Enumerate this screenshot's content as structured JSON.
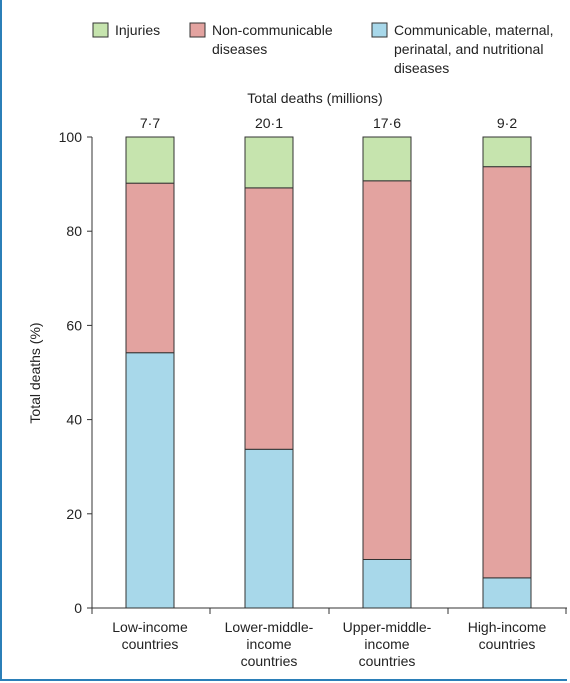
{
  "chart_data": {
    "type": "bar",
    "stacked": true,
    "categories": [
      [
        "Low-income",
        "countries"
      ],
      [
        "Lower-middle-",
        "income",
        "countries"
      ],
      [
        "Upper-middle-",
        "income",
        "countries"
      ],
      [
        "High-income",
        "countries"
      ]
    ],
    "series": [
      {
        "name": "Communicable, maternal, perinatal, and nutritional diseases",
        "legend_lines": [
          "Communicable, maternal,",
          "perinatal, and nutritional",
          "diseases"
        ],
        "color": "#a8d8ea",
        "values": [
          54.2,
          33.7,
          10.3,
          6.4
        ]
      },
      {
        "name": "Non-communicable diseases",
        "legend_lines": [
          "Non-communicable",
          "diseases"
        ],
        "color": "#e3a3a0",
        "values": [
          36.0,
          55.5,
          80.4,
          87.3
        ]
      },
      {
        "name": "Injuries",
        "legend_lines": [
          "Injuries"
        ],
        "color": "#c6e4ae",
        "values": [
          9.8,
          10.8,
          9.3,
          6.3
        ]
      }
    ],
    "stack_order": [
      "Communicable, maternal, perinatal, and nutritional diseases",
      "Non-communicable diseases",
      "Injuries"
    ],
    "totals_title": "Total deaths (millions)",
    "totals": [
      "7·7",
      "20·1",
      "17·6",
      "9·2"
    ],
    "ylabel": "Total deaths (%)",
    "ylim": [
      0,
      100
    ],
    "yticks": [
      0,
      20,
      40,
      60,
      80,
      100
    ],
    "grid": false,
    "legend_position": "top"
  }
}
